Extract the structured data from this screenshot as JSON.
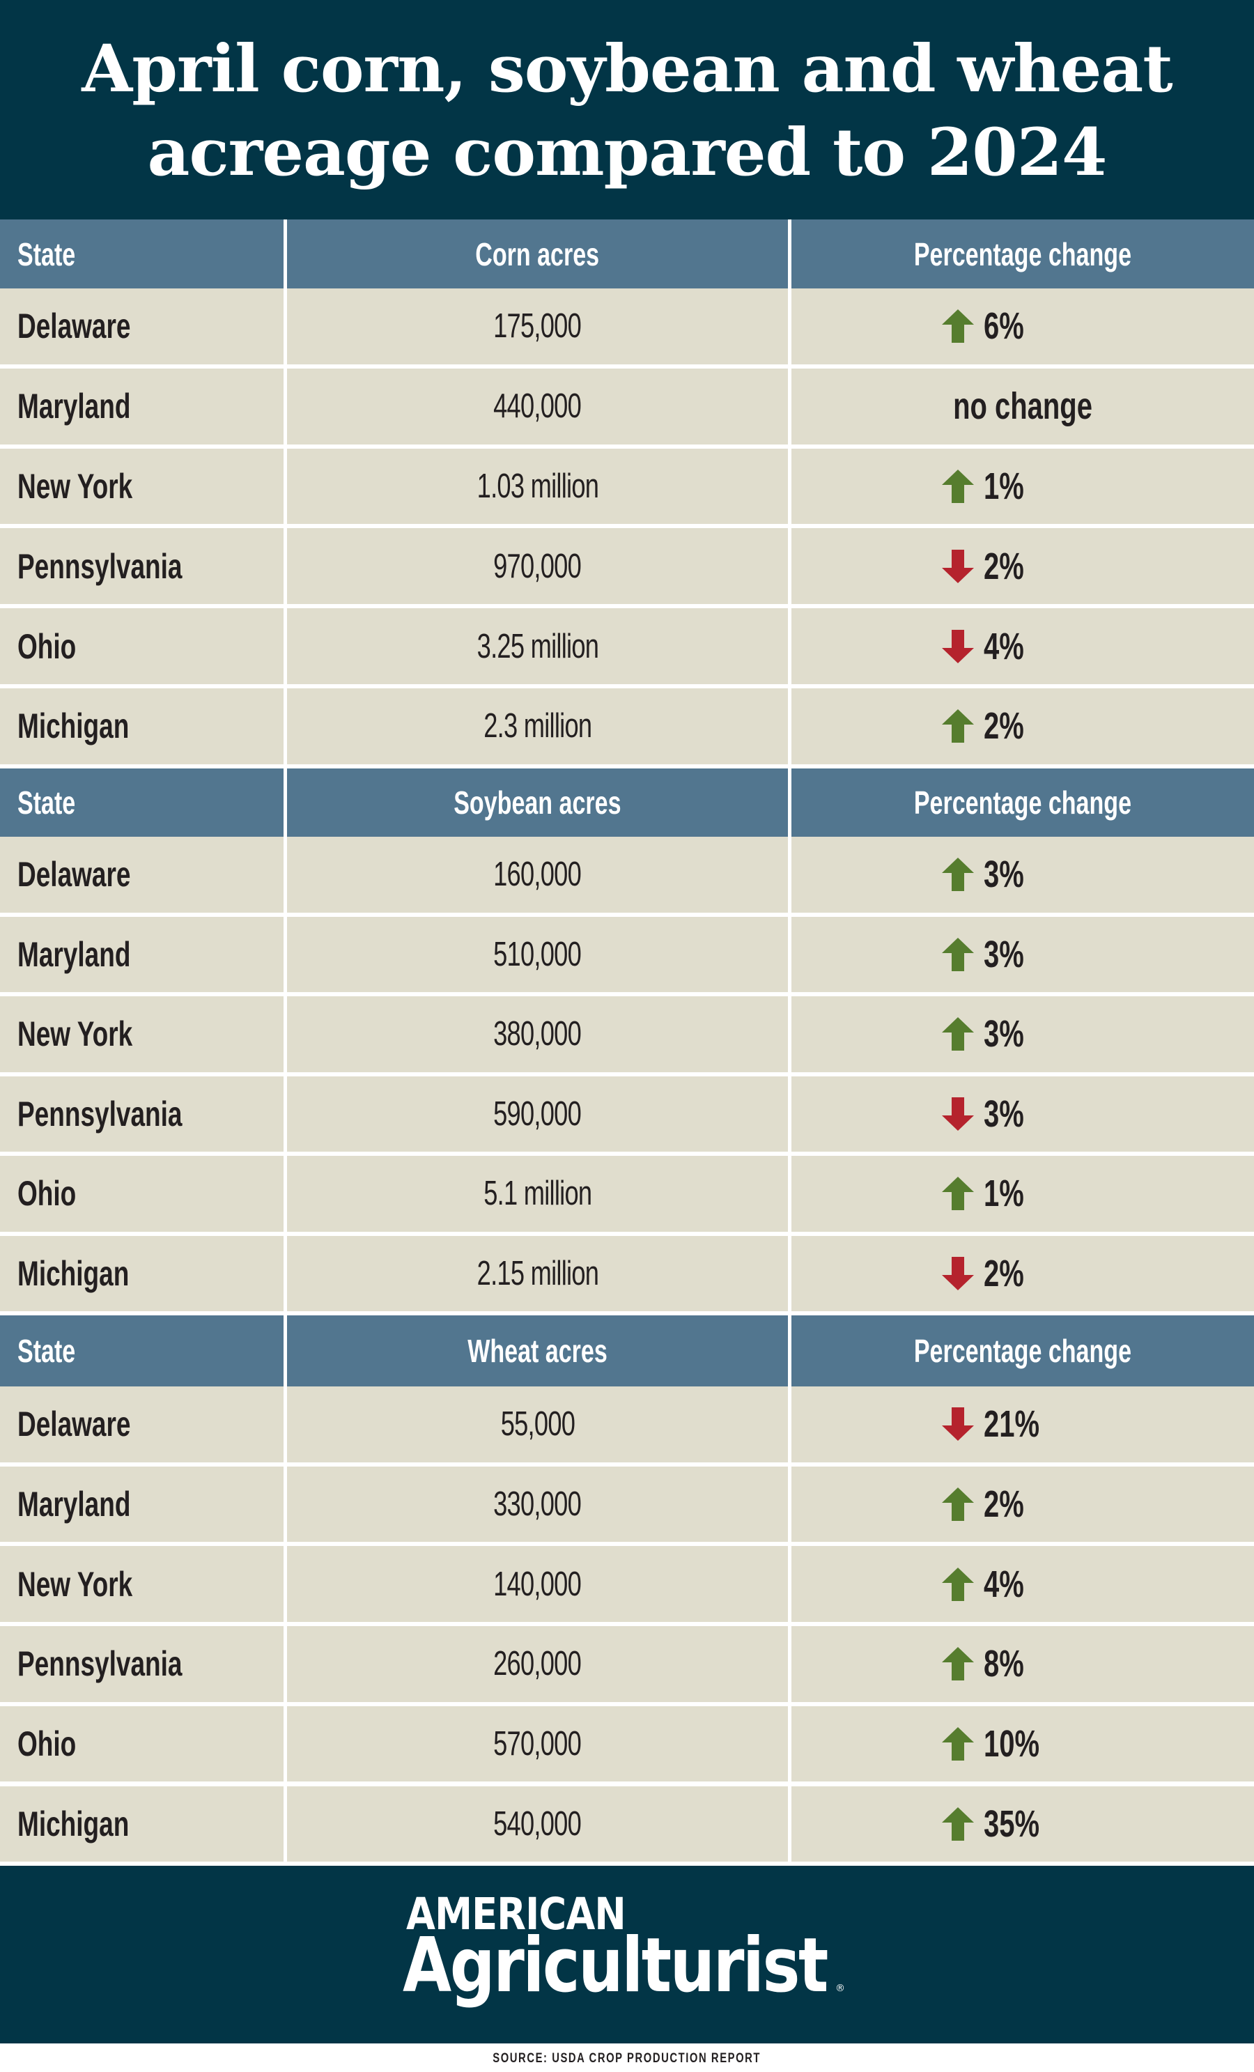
{
  "title": {
    "line1": "April corn, soybean and wheat",
    "line2": "acreage compared to 2024"
  },
  "colors": {
    "title_band": "#023546",
    "header_row": "#52768f",
    "data_row": "#e0ddcd",
    "up_arrow": "#567d2e",
    "down_arrow": "#b5232d",
    "text_dark": "#231f20"
  },
  "sections": [
    {
      "headers": [
        "State",
        "Corn acres",
        "Percentage change"
      ],
      "rows": [
        {
          "state": "Delaware",
          "acres": "175,000",
          "direction": "up",
          "change": "6%"
        },
        {
          "state": "Maryland",
          "acres": "440,000",
          "direction": "none",
          "change": "no change"
        },
        {
          "state": "New York",
          "acres": "1.03 million",
          "direction": "up",
          "change": "1%"
        },
        {
          "state": "Pennsylvania",
          "acres": "970,000",
          "direction": "down",
          "change": "2%"
        },
        {
          "state": "Ohio",
          "acres": "3.25 million",
          "direction": "down",
          "change": "4%"
        },
        {
          "state": "Michigan",
          "acres": "2.3 million",
          "direction": "up",
          "change": "2%"
        }
      ]
    },
    {
      "headers": [
        "State",
        "Soybean acres",
        "Percentage change"
      ],
      "rows": [
        {
          "state": "Delaware",
          "acres": "160,000",
          "direction": "up",
          "change": "3%"
        },
        {
          "state": "Maryland",
          "acres": "510,000",
          "direction": "up",
          "change": "3%"
        },
        {
          "state": "New York",
          "acres": "380,000",
          "direction": "up",
          "change": "3%"
        },
        {
          "state": "Pennsylvania",
          "acres": "590,000",
          "direction": "down",
          "change": "3%"
        },
        {
          "state": "Ohio",
          "acres": "5.1 million",
          "direction": "up",
          "change": "1%"
        },
        {
          "state": "Michigan",
          "acres": "2.15 million",
          "direction": "down",
          "change": "2%"
        }
      ]
    },
    {
      "headers": [
        "State",
        "Wheat acres",
        "Percentage change"
      ],
      "rows": [
        {
          "state": "Delaware",
          "acres": "55,000",
          "direction": "down",
          "change": "21%"
        },
        {
          "state": "Maryland",
          "acres": "330,000",
          "direction": "up",
          "change": "2%"
        },
        {
          "state": "New York",
          "acres": "140,000",
          "direction": "up",
          "change": "4%"
        },
        {
          "state": "Pennsylvania",
          "acres": "260,000",
          "direction": "up",
          "change": "8%"
        },
        {
          "state": "Ohio",
          "acres": "570,000",
          "direction": "up",
          "change": "10%"
        },
        {
          "state": "Michigan",
          "acres": "540,000",
          "direction": "up",
          "change": "35%"
        }
      ]
    }
  ],
  "footer": {
    "logo_line1": "AMERICAN",
    "logo_line2": "Agriculturist",
    "logo_mark": "®",
    "source": "SOURCE: USDA CROP PRODUCTION REPORT"
  }
}
